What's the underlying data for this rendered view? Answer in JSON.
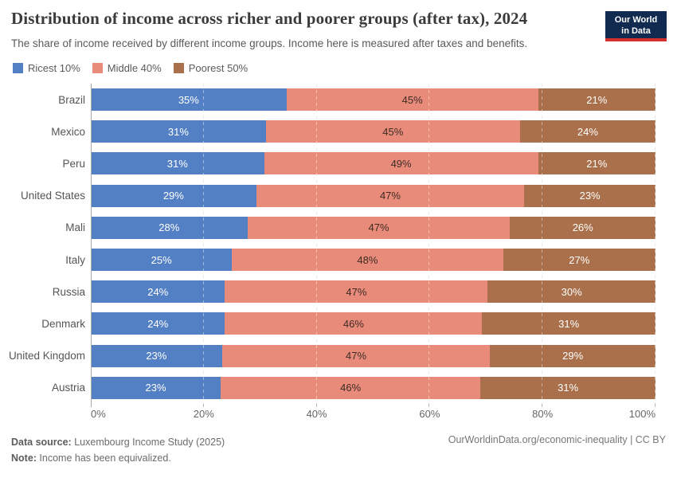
{
  "header": {
    "title": "Distribution of income across richer and poorer groups (after tax), 2024",
    "subtitle": "The share of income received by different income groups. Income here is measured after taxes and benefits.",
    "logo_line1": "Our World",
    "logo_line2": "in Data",
    "logo_bg_color": "#102a50",
    "logo_stripe_color": "#d2302c"
  },
  "legend": {
    "items": [
      {
        "label": "Ricest 10%",
        "color": "#5380c4"
      },
      {
        "label": "Middle 40%",
        "color": "#e98b7b"
      },
      {
        "label": "Poorest 50%",
        "color": "#a9704b"
      }
    ]
  },
  "chart_data": {
    "type": "bar",
    "stacked": true,
    "orientation": "horizontal",
    "title": "Distribution of income across richer and poorer groups (after tax), 2024",
    "categories": [
      "Brazil",
      "Mexico",
      "Peru",
      "United States",
      "Mali",
      "Italy",
      "Russia",
      "Denmark",
      "United Kingdom",
      "Austria"
    ],
    "series": [
      {
        "name": "Ricest 10%",
        "color": "#5380c4",
        "label_color": "#ffffff",
        "values": [
          35,
          31,
          31,
          29,
          28,
          25,
          24,
          24,
          23,
          23
        ]
      },
      {
        "name": "Middle 40%",
        "color": "#e98b7b",
        "label_color": "#3d2c24",
        "values": [
          45,
          45,
          49,
          47,
          47,
          48,
          47,
          46,
          47,
          46
        ]
      },
      {
        "name": "Poorest 50%",
        "color": "#a9704b",
        "label_color": "#ffffff",
        "values": [
          21,
          24,
          21,
          23,
          26,
          27,
          30,
          31,
          29,
          31
        ]
      }
    ],
    "value_suffix": "%",
    "x_ticks": [
      "0%",
      "20%",
      "40%",
      "60%",
      "80%",
      "100%"
    ],
    "x_tick_positions": [
      0,
      20,
      40,
      60,
      80,
      100
    ],
    "xlim": [
      0,
      100
    ],
    "grid": "dashed-vertical",
    "legend_position": "top-left"
  },
  "footer": {
    "source_label": "Data source:",
    "source_text": " Luxembourg Income Study (2025)",
    "note_label": "Note:",
    "note_text": " Income has been equivalized.",
    "right_text": "OurWorldinData.org/economic-inequality | CC BY"
  }
}
